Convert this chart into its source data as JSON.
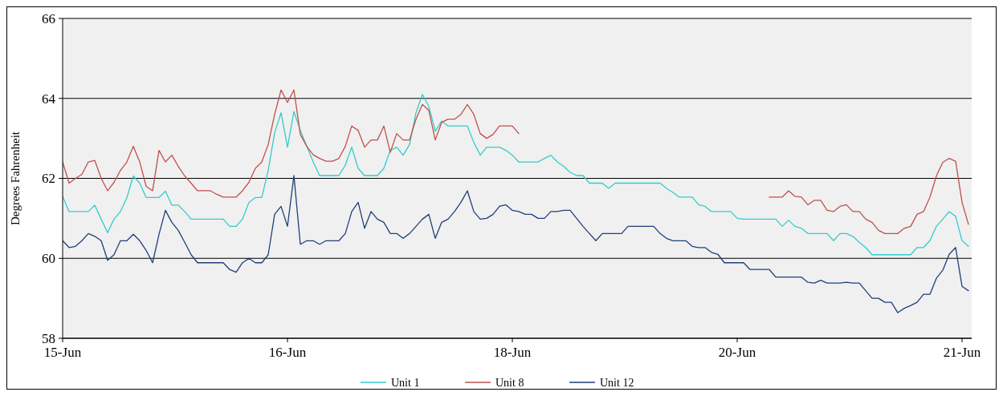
{
  "chart_data": {
    "type": "line",
    "ylabel": "Degrees Fahrenheit",
    "categories": [
      "15-Jun",
      null,
      null,
      null,
      null,
      null,
      null,
      null,
      null,
      null,
      null,
      null,
      null,
      null,
      null,
      null,
      null,
      null,
      null,
      null,
      null,
      null,
      null,
      null,
      null,
      null,
      null,
      null,
      null,
      null,
      null,
      null,
      null,
      null,
      null,
      "16-Jun",
      null,
      null,
      null,
      null,
      null,
      null,
      null,
      null,
      null,
      null,
      null,
      null,
      null,
      null,
      null,
      null,
      null,
      null,
      null,
      null,
      null,
      null,
      null,
      null,
      null,
      null,
      null,
      null,
      null,
      null,
      null,
      null,
      null,
      null,
      "18-Jun",
      null,
      null,
      null,
      null,
      null,
      null,
      null,
      null,
      null,
      null,
      null,
      null,
      null,
      null,
      null,
      null,
      null,
      null,
      null,
      null,
      null,
      null,
      null,
      null,
      null,
      null,
      null,
      null,
      null,
      null,
      null,
      null,
      null,
      null,
      "20-Jun",
      null,
      null,
      null,
      null,
      null,
      null,
      null,
      null,
      null,
      null,
      null,
      null,
      null,
      null,
      null,
      null,
      null,
      null,
      null,
      null,
      null,
      null,
      null,
      null,
      null,
      null,
      null,
      null,
      null,
      null,
      null,
      null,
      null,
      null,
      "21-Jun",
      null
    ],
    "ylim": [
      58,
      66
    ],
    "yticks": [
      58,
      60,
      62,
      64,
      66
    ],
    "grid": "y",
    "legend": "bottom",
    "marker": "none",
    "line_style": "solid",
    "series": [
      {
        "name": "Unit 1",
        "color": "#33cccc",
        "values": [
          61.55,
          61.17,
          61.17,
          61.17,
          61.17,
          61.33,
          60.98,
          60.64,
          60.98,
          61.17,
          61.52,
          62.06,
          61.88,
          61.52,
          61.52,
          61.52,
          61.68,
          61.33,
          61.33,
          61.17,
          60.98,
          60.98,
          60.98,
          60.98,
          60.98,
          60.98,
          60.8,
          60.8,
          60.98,
          61.4,
          61.52,
          61.52,
          62.2,
          63.14,
          63.64,
          62.78,
          63.67,
          63.2,
          62.8,
          62.41,
          62.07,
          62.07,
          62.07,
          62.07,
          62.33,
          62.78,
          62.25,
          62.07,
          62.07,
          62.07,
          62.25,
          62.7,
          62.78,
          62.58,
          62.85,
          63.64,
          64.1,
          63.8,
          63.18,
          63.43,
          63.31,
          63.31,
          63.31,
          63.31,
          62.9,
          62.58,
          62.78,
          62.78,
          62.78,
          62.7,
          62.58,
          62.41,
          62.41,
          62.41,
          62.41,
          62.5,
          62.58,
          62.41,
          62.3,
          62.15,
          62.07,
          62.07,
          61.88,
          61.88,
          61.88,
          61.75,
          61.88,
          61.88,
          61.88,
          61.88,
          61.88,
          61.88,
          61.88,
          61.88,
          61.75,
          61.65,
          61.53,
          61.53,
          61.53,
          61.34,
          61.3,
          61.17,
          61.17,
          61.17,
          61.17,
          61.0,
          60.98,
          60.98,
          60.98,
          60.98,
          60.98,
          60.98,
          60.8,
          60.95,
          60.8,
          60.75,
          60.62,
          60.62,
          60.62,
          60.62,
          60.44,
          60.62,
          60.62,
          60.55,
          60.4,
          60.27,
          60.09,
          60.09,
          60.09,
          60.09,
          60.09,
          60.09,
          60.09,
          60.27,
          60.27,
          60.44,
          60.8,
          60.98,
          61.17,
          61.05,
          60.44,
          60.3
        ]
      },
      {
        "name": "Unit 8",
        "color": "#c0504d",
        "values": [
          62.41,
          61.88,
          62.0,
          62.1,
          62.41,
          62.45,
          62.0,
          61.69,
          61.9,
          62.2,
          62.41,
          62.8,
          62.41,
          61.8,
          61.69,
          62.7,
          62.41,
          62.58,
          62.3,
          62.06,
          61.88,
          61.69,
          61.69,
          61.69,
          61.6,
          61.53,
          61.53,
          61.53,
          61.69,
          61.9,
          62.25,
          62.41,
          62.85,
          63.6,
          64.21,
          63.9,
          64.21,
          63.1,
          62.8,
          62.59,
          62.5,
          62.43,
          62.43,
          62.5,
          62.8,
          63.31,
          63.2,
          62.78,
          62.96,
          62.96,
          63.31,
          62.65,
          63.12,
          62.96,
          62.96,
          63.48,
          63.85,
          63.7,
          62.96,
          63.4,
          63.48,
          63.48,
          63.6,
          63.85,
          63.6,
          63.12,
          63.0,
          63.1,
          63.31,
          63.31,
          63.31,
          63.12,
          null,
          null,
          null,
          null,
          null,
          null,
          null,
          null,
          null,
          null,
          null,
          null,
          null,
          null,
          null,
          null,
          null,
          null,
          null,
          null,
          null,
          null,
          null,
          null,
          null,
          null,
          null,
          null,
          null,
          null,
          null,
          null,
          null,
          null,
          null,
          null,
          null,
          null,
          61.53,
          61.53,
          61.53,
          61.69,
          61.55,
          61.53,
          61.34,
          61.45,
          61.45,
          61.2,
          61.17,
          61.3,
          61.34,
          61.17,
          61.17,
          60.98,
          60.9,
          60.7,
          60.62,
          60.62,
          60.62,
          60.75,
          60.8,
          61.1,
          61.17,
          61.53,
          62.06,
          62.4,
          62.5,
          62.43,
          61.4,
          60.85
        ]
      },
      {
        "name": "Unit 12",
        "color": "#1f3f7a",
        "values": [
          60.44,
          60.27,
          60.3,
          60.44,
          60.62,
          60.55,
          60.44,
          59.95,
          60.09,
          60.44,
          60.44,
          60.6,
          60.44,
          60.2,
          59.89,
          60.6,
          61.2,
          60.9,
          60.7,
          60.4,
          60.09,
          59.89,
          59.89,
          59.89,
          59.89,
          59.89,
          59.72,
          59.65,
          59.89,
          60.0,
          59.89,
          59.89,
          60.09,
          61.1,
          61.3,
          60.8,
          62.07,
          60.35,
          60.44,
          60.44,
          60.35,
          60.44,
          60.44,
          60.44,
          60.62,
          61.17,
          61.4,
          60.75,
          61.17,
          60.98,
          60.9,
          60.62,
          60.62,
          60.5,
          60.62,
          60.8,
          60.98,
          61.1,
          60.5,
          60.9,
          60.98,
          61.17,
          61.4,
          61.69,
          61.17,
          60.98,
          61.0,
          61.1,
          61.3,
          61.34,
          61.2,
          61.17,
          61.1,
          61.1,
          61.0,
          61.0,
          61.17,
          61.17,
          61.2,
          61.2,
          61.0,
          60.8,
          60.62,
          60.44,
          60.62,
          60.62,
          60.62,
          60.62,
          60.8,
          60.8,
          60.8,
          60.8,
          60.8,
          60.62,
          60.5,
          60.44,
          60.44,
          60.44,
          60.3,
          60.27,
          60.27,
          60.15,
          60.1,
          59.89,
          59.89,
          59.89,
          59.89,
          59.72,
          59.72,
          59.72,
          59.72,
          59.53,
          59.53,
          59.53,
          59.53,
          59.53,
          59.4,
          59.38,
          59.45,
          59.38,
          59.38,
          59.38,
          59.4,
          59.38,
          59.38,
          59.19,
          59.0,
          59.0,
          58.9,
          58.9,
          58.64,
          58.75,
          58.82,
          58.9,
          59.1,
          59.1,
          59.5,
          59.7,
          60.1,
          60.27,
          59.3,
          59.19
        ]
      }
    ]
  }
}
